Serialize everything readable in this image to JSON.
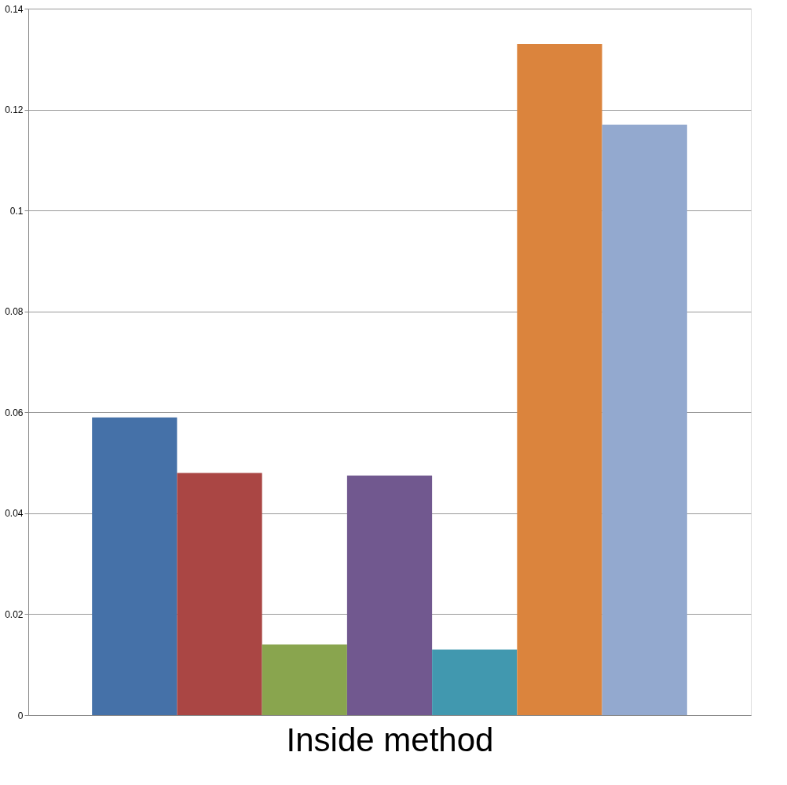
{
  "chart_data": {
    "type": "bar",
    "xlabel": "Inside method",
    "categories": [
      null,
      null,
      null,
      null,
      null,
      null,
      null
    ],
    "values": [
      0.059,
      0.048,
      0.014,
      0.0475,
      0.013,
      0.133,
      0.117
    ],
    "colors": [
      "#4571a8",
      "#aa4644",
      "#89a54e",
      "#71588f",
      "#4198af",
      "#db843d",
      "#93a9cf"
    ],
    "ylim": [
      0,
      0.14
    ],
    "yticks": [
      0,
      0.02,
      0.04,
      0.06,
      0.08,
      0.1,
      0.12,
      0.14
    ],
    "grid": "y",
    "legend": false
  }
}
